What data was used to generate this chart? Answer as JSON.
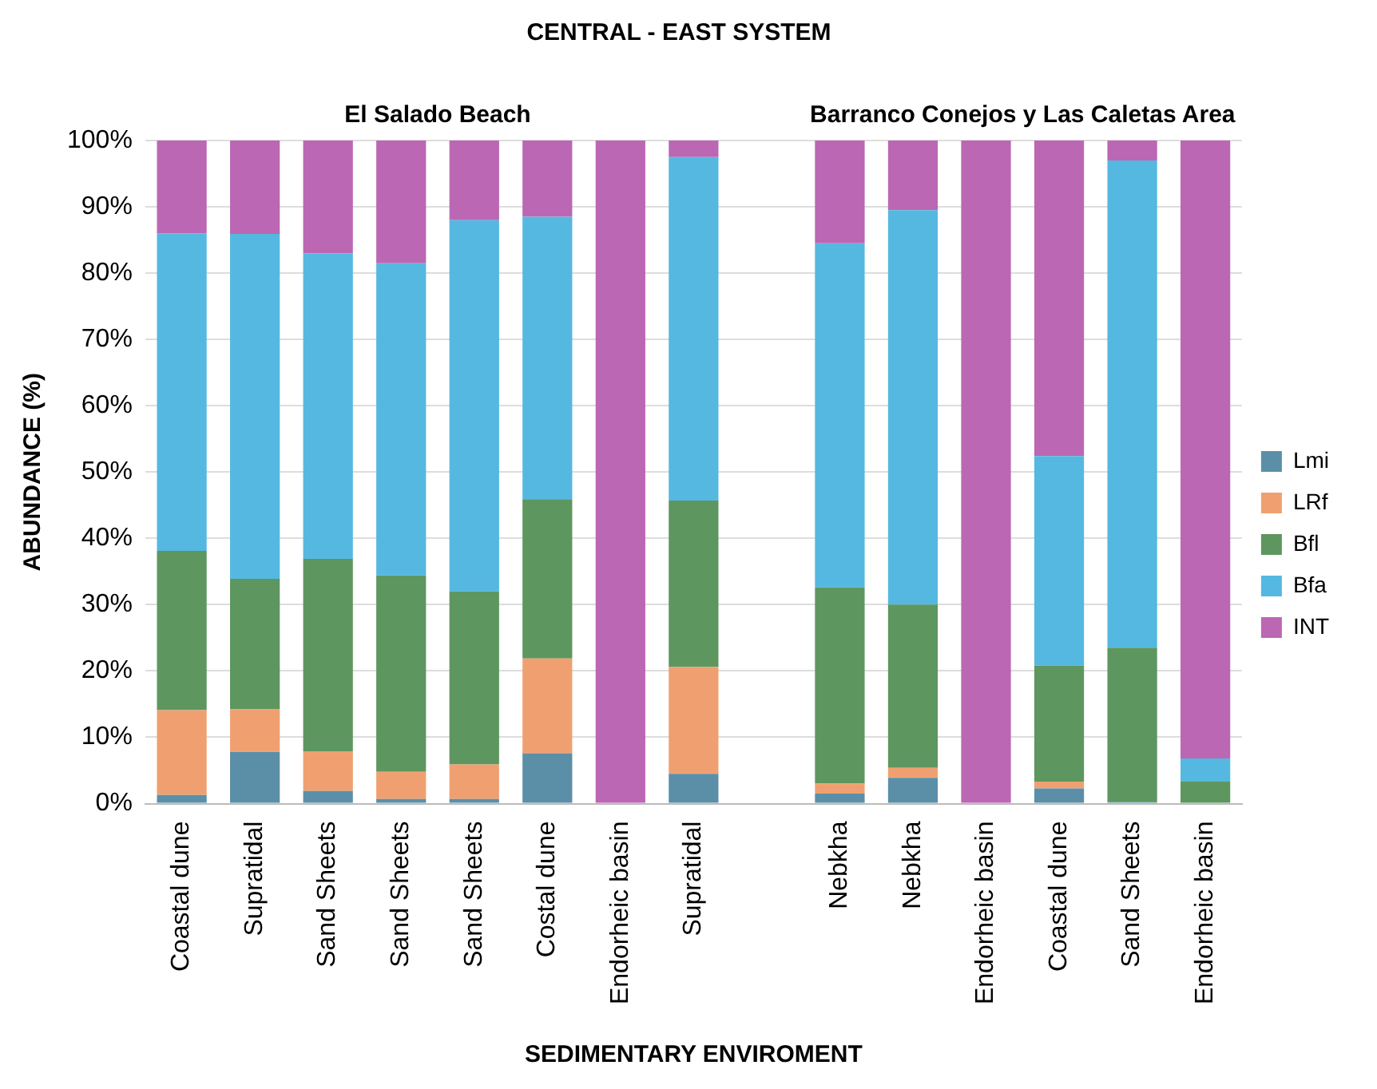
{
  "chart_data": {
    "type": "bar",
    "stacked": true,
    "title": "CENTRAL - EAST SYSTEM",
    "xlabel": "SEDIMENTARY ENVIROMENT",
    "ylabel": "ABUNDANCE (%)",
    "annotations": [
      "El Salado Beach",
      "Barranco Conejos y Las Caletas Area"
    ],
    "categories": [
      "Coastal dune",
      "Supratidal",
      "Sand Sheets",
      "Sand Sheets",
      "Sand Sheets",
      "Costal dune",
      "Endorheic basin",
      "Supratidal",
      null,
      "Nebkha",
      "Nebkha",
      "Endorheic basin",
      "Coastal dune",
      "Sand Sheets",
      "Endorheic basin"
    ],
    "series": [
      {
        "name": "Lmi",
        "color": "#5b8fa8",
        "values": [
          1.3,
          7.8,
          1.9,
          0.7,
          0.7,
          7.6,
          0,
          4.5,
          null,
          1.5,
          3.9,
          0,
          2.3,
          0.2,
          0
        ]
      },
      {
        "name": "LRf",
        "color": "#f0a070",
        "values": [
          12.8,
          6.4,
          6,
          4.1,
          5.2,
          14.3,
          0,
          16.1,
          null,
          1.5,
          1.5,
          0,
          1,
          0,
          0
        ]
      },
      {
        "name": "Bfl",
        "color": "#5e9660",
        "values": [
          24,
          19.7,
          29,
          29.6,
          26.1,
          24,
          0,
          25.1,
          null,
          29.6,
          24.6,
          0,
          17.5,
          23.3,
          3.3
        ]
      },
      {
        "name": "Bfa",
        "color": "#55b8e0",
        "values": [
          47.9,
          52,
          46.1,
          47.1,
          56,
          42.6,
          0,
          51.8,
          null,
          51.9,
          59.5,
          0,
          31.6,
          73.5,
          3.5
        ]
      },
      {
        "name": "INT",
        "color": "#bb67b4",
        "values": [
          14,
          14.1,
          17,
          18.5,
          12,
          11.5,
          100,
          2.5,
          null,
          15.5,
          10.5,
          100,
          47.6,
          3,
          93.2
        ]
      }
    ],
    "ylim": [
      0,
      100
    ],
    "yticks": [
      {
        "value": 0,
        "label": "0%"
      },
      {
        "value": 10,
        "label": "10%"
      },
      {
        "value": 20,
        "label": "20%"
      },
      {
        "value": 30,
        "label": "30%"
      },
      {
        "value": 40,
        "label": "40%"
      },
      {
        "value": 50,
        "label": "50%"
      },
      {
        "value": 60,
        "label": "60%"
      },
      {
        "value": 70,
        "label": "70%"
      },
      {
        "value": 80,
        "label": "80%"
      },
      {
        "value": 90,
        "label": "90%"
      },
      {
        "value": 100,
        "label": "100%"
      }
    ],
    "grid": "y",
    "legend": "right"
  }
}
